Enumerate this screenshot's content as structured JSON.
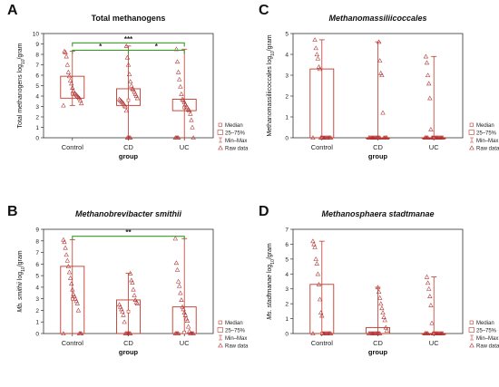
{
  "figure": {
    "legend_items": [
      {
        "label": "Median",
        "icon": "small-square-icon"
      },
      {
        "label": "25–75%",
        "icon": "box-icon"
      },
      {
        "label": "Min–Max",
        "icon": "whisker-icon"
      },
      {
        "label": "Raw data",
        "icon": "triangle-icon"
      }
    ],
    "colors": {
      "box": "#c0392b",
      "points": "#b03030",
      "bracket": "#3a9a2a",
      "axis": "#333333"
    }
  },
  "chart_data": [
    {
      "type": "box",
      "panel_label": "A",
      "title": "Total methanogens",
      "title_italic": false,
      "xlabel": "group",
      "ylabel_parts": [
        "Total methanogens log",
        "10",
        "/gram"
      ],
      "ylabel_italic_prefix": "",
      "categories": [
        "Control",
        "CD",
        "UC"
      ],
      "ylim": [
        0,
        10
      ],
      "yticks": [
        0,
        1,
        2,
        3,
        4,
        5,
        6,
        7,
        8,
        9,
        10
      ],
      "boxes": [
        {
          "min": 3.1,
          "q1": 3.8,
          "median": 4.2,
          "q3": 5.9,
          "max": 8.3
        },
        {
          "min": 0,
          "q1": 3.1,
          "median": 3.6,
          "q3": 4.7,
          "max": 8.8
        },
        {
          "min": 0,
          "q1": 2.6,
          "median": 2.9,
          "q3": 3.7,
          "max": 8.5
        }
      ],
      "raw": [
        [
          3.1,
          3.3,
          3.6,
          3.8,
          3.9,
          4.0,
          4.1,
          4.2,
          4.3,
          4.5,
          4.8,
          5.2,
          5.5,
          5.9,
          6.3,
          7.0,
          7.8,
          8.2,
          8.3
        ],
        [
          0,
          0,
          0,
          0,
          2.6,
          3.0,
          3.1,
          3.3,
          3.4,
          3.5,
          3.6,
          3.7,
          3.8,
          4.0,
          4.2,
          4.4,
          4.6,
          4.7,
          5.0,
          5.4,
          6.1,
          7.0,
          7.7,
          8.8
        ],
        [
          0,
          0,
          0,
          0,
          0,
          1.0,
          1.7,
          2.3,
          2.6,
          2.7,
          2.9,
          3.0,
          3.2,
          3.4,
          3.6,
          3.7,
          4.2,
          4.9,
          5.6,
          6.3,
          7.3,
          8.5
        ]
      ],
      "brackets": [
        {
          "from": 0,
          "to": 2,
          "y": 9.1,
          "label": "***"
        },
        {
          "from": 0,
          "to": 1,
          "y": 8.4,
          "label": "*"
        },
        {
          "from": 1,
          "to": 2,
          "y": 8.4,
          "label": "*"
        }
      ]
    },
    {
      "type": "box",
      "panel_label": "B",
      "title": "Methanobrevibacter  smithii",
      "title_italic": true,
      "xlabel": "group",
      "ylabel_parts": [
        "Mb. smithii",
        " log",
        "10",
        "/gram"
      ],
      "ylabel_italic_prefix": "Mb. smithii",
      "categories": [
        "Control",
        "CD",
        "UC"
      ],
      "ylim": [
        0,
        9
      ],
      "yticks": [
        0,
        1,
        2,
        3,
        4,
        5,
        6,
        7,
        8,
        9
      ],
      "boxes": [
        {
          "min": 0,
          "q1": 0,
          "median": 3.0,
          "q3": 5.8,
          "max": 8.1
        },
        {
          "min": 0,
          "q1": 0,
          "median": 1.9,
          "q3": 2.9,
          "max": 5.2
        },
        {
          "min": 0,
          "q1": 0,
          "median": 0.1,
          "q3": 2.3,
          "max": 8.2
        }
      ],
      "raw": [
        [
          0,
          0,
          0,
          0,
          2.0,
          2.6,
          2.8,
          3.0,
          3.2,
          3.4,
          3.8,
          4.3,
          4.8,
          5.3,
          5.8,
          6.3,
          6.8,
          7.4,
          7.9,
          8.1
        ],
        [
          0,
          0,
          0,
          0,
          0,
          0,
          1.0,
          1.6,
          1.9,
          2.1,
          2.3,
          2.5,
          2.6,
          2.7,
          2.9,
          3.3,
          3.8,
          4.4,
          4.6,
          5.2
        ],
        [
          0,
          0,
          0,
          0,
          0,
          0,
          0,
          0,
          0.2,
          0.6,
          1.1,
          1.3,
          1.6,
          1.8,
          2.1,
          2.3,
          2.9,
          3.5,
          4.1,
          4.5,
          5.5,
          6.1,
          8.2
        ]
      ],
      "brackets": [
        {
          "from": 0,
          "to": 2,
          "y": 8.4,
          "label": "**"
        }
      ]
    },
    {
      "type": "box",
      "panel_label": "C",
      "title": "Methanomassiliicoccales",
      "title_italic": true,
      "xlabel": "group",
      "ylabel_parts": [
        "Methanomassiliicoccales log",
        "10",
        "/gram"
      ],
      "ylabel_italic_prefix": "",
      "categories": [
        "Control",
        "CD",
        "UC"
      ],
      "ylim": [
        0,
        5
      ],
      "yticks": [
        0,
        1,
        2,
        3,
        4,
        5
      ],
      "boxes": [
        {
          "min": 0,
          "q1": 0,
          "median": 0,
          "q3": 3.3,
          "max": 4.7
        },
        {
          "min": 0,
          "q1": 0,
          "median": 0,
          "q3": 0,
          "max": 4.6
        },
        {
          "min": 0,
          "q1": 0,
          "median": 0,
          "q3": 0,
          "max": 3.9
        }
      ],
      "raw": [
        [
          0,
          0,
          0,
          0,
          0,
          0,
          0,
          0,
          0,
          0,
          0,
          0,
          3.3,
          3.4,
          3.8,
          4.0,
          4.3,
          4.7
        ],
        [
          0,
          0,
          0,
          0,
          0,
          0,
          0,
          0,
          0,
          0,
          0,
          0,
          0,
          0,
          0,
          0,
          1.2,
          3.0,
          3.1,
          3.7,
          4.6
        ],
        [
          0,
          0,
          0,
          0,
          0,
          0,
          0,
          0,
          0,
          0,
          0,
          0,
          0,
          0,
          0,
          0,
          0.4,
          1.9,
          2.6,
          3.0,
          3.6,
          3.9
        ]
      ],
      "brackets": []
    },
    {
      "type": "box",
      "panel_label": "D",
      "title": "Methanosphaera stadtmanae",
      "title_italic": true,
      "xlabel": "group",
      "ylabel_parts": [
        "Ms. stadtmanae",
        " log",
        "10",
        "/gram"
      ],
      "ylabel_italic_prefix": "Ms. stadtmanae",
      "categories": [
        "Control",
        "CD",
        "UC"
      ],
      "ylim": [
        0,
        7
      ],
      "yticks": [
        0,
        1,
        2,
        3,
        4,
        5,
        6,
        7
      ],
      "boxes": [
        {
          "min": 0,
          "q1": 0,
          "median": 0,
          "q3": 3.3,
          "max": 6.2
        },
        {
          "min": 0,
          "q1": 0,
          "median": 0,
          "q3": 0.4,
          "max": 3.1
        },
        {
          "min": 0,
          "q1": 0,
          "median": 0,
          "q3": 0,
          "max": 3.8
        }
      ],
      "raw": [
        [
          0,
          0,
          0,
          0,
          0,
          0,
          0,
          0,
          0,
          0,
          1.2,
          1.4,
          2.3,
          3.3,
          4.0,
          4.7,
          5.0,
          5.8,
          6.0,
          6.2
        ],
        [
          0,
          0,
          0,
          0,
          0,
          0,
          0,
          0,
          0,
          0,
          0,
          0,
          0.2,
          0.4,
          0.9,
          1.1,
          1.4,
          1.7,
          2.0,
          2.4,
          2.8,
          3.1
        ],
        [
          0,
          0,
          0,
          0,
          0,
          0,
          0,
          0,
          0,
          0,
          0,
          0,
          0,
          0,
          0,
          0.7,
          1.9,
          2.5,
          3.0,
          3.4,
          3.8
        ]
      ],
      "brackets": []
    }
  ]
}
